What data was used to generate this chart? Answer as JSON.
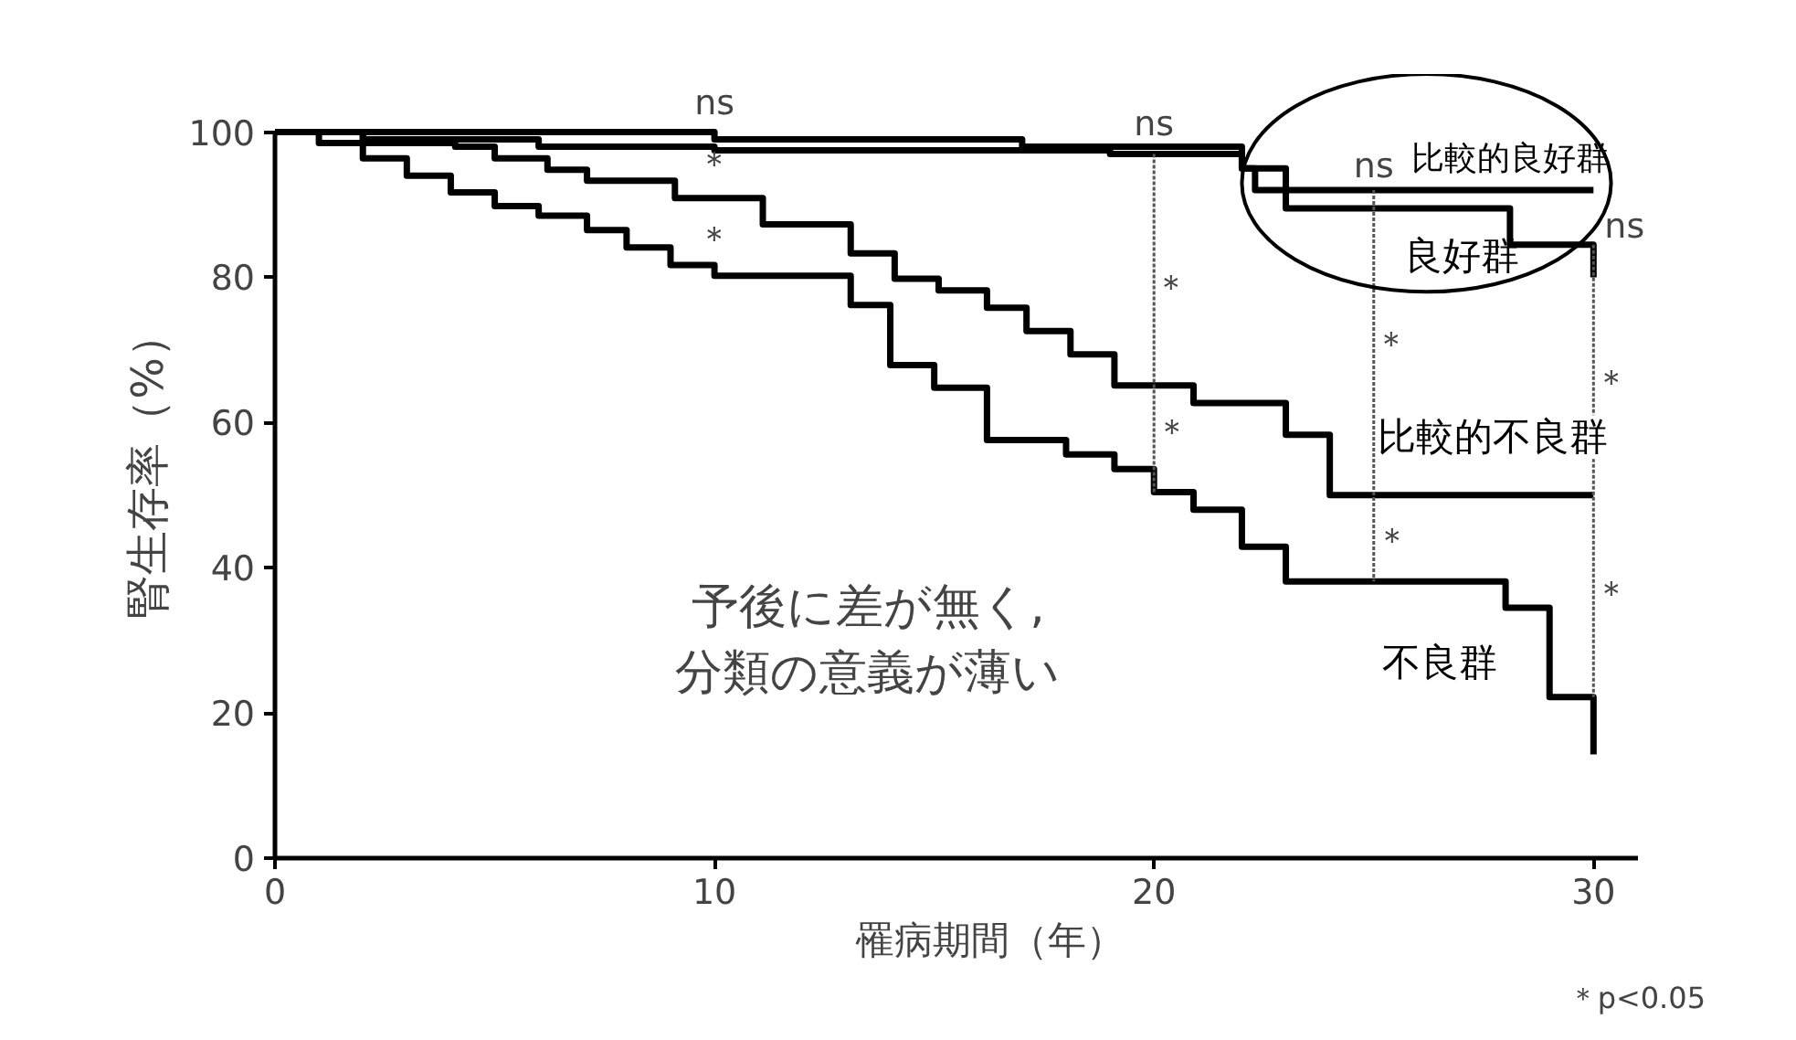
{
  "chart_data": {
    "type": "step",
    "xlabel": "罹病期間（年）",
    "ylabel": "腎生存率（%）",
    "xlim": [
      0,
      31
    ],
    "ylim": [
      0,
      100
    ],
    "xticks": [
      0,
      10,
      20,
      30
    ],
    "yticks": [
      0,
      20,
      40,
      60,
      80,
      100
    ],
    "grid": false,
    "legend": false,
    "marker": "none",
    "line_style": "solid",
    "series": [
      {
        "name": "比較的良好群",
        "color": "#000000",
        "x": [
          0,
          10,
          17,
          22,
          22.3,
          30
        ],
        "values": [
          100,
          99,
          98,
          95,
          92,
          92
        ]
      },
      {
        "name": "良好群",
        "color": "#000000",
        "x": [
          0,
          1,
          2,
          6,
          10,
          19,
          22,
          23,
          28.1,
          30
        ],
        "values": [
          100,
          100,
          99,
          98,
          97.5,
          97,
          95,
          89.5,
          84.5,
          80
        ]
      },
      {
        "name": "比較的不良群",
        "color": "#000000",
        "x": [
          0,
          1,
          4.1,
          5,
          6.2,
          7.1,
          9.1,
          11.1,
          13.1,
          14.1,
          15.1,
          16.2,
          17.1,
          18.1,
          19.1,
          20.9,
          23,
          24,
          30
        ],
        "values": [
          100,
          98.5,
          98,
          96.4,
          94.8,
          93.3,
          90.9,
          87.3,
          83.3,
          79.8,
          78.2,
          75.8,
          72.6,
          69.4,
          65.1,
          62.7,
          58.3,
          50,
          50
        ]
      },
      {
        "name": "不良群",
        "color": "#000000",
        "x": [
          0,
          2,
          3,
          4,
          5,
          6,
          7.1,
          8,
          9,
          10,
          13.1,
          14,
          15,
          16.2,
          18,
          19.1,
          20,
          20.9,
          22,
          23,
          28,
          29,
          30,
          30
        ],
        "values": [
          100,
          96.4,
          94,
          91.7,
          89.8,
          88.5,
          86.5,
          84.1,
          81.7,
          80.2,
          76.2,
          67.9,
          64.8,
          57.6,
          55.6,
          53.6,
          50.4,
          48,
          42.9,
          38.1,
          34.5,
          22.2,
          22.2,
          14.3
        ]
      }
    ],
    "annotations": [
      "ns",
      "＊",
      "＊",
      {
        "text": "ns",
        "x": 20,
        "y": 97
      },
      "＊",
      {
        "text": "＊",
        "x": 20,
        "y": 50.4
      },
      {
        "text": "ns",
        "x": 25,
        "y": 92
      },
      "＊",
      {
        "text": "＊",
        "x": 25,
        "y": 38.1
      },
      {
        "text": "ns",
        "x": 30,
        "y": 84.5
      },
      "＊",
      "＊",
      "予後に差が無く,\n分類の意義が薄い",
      "＊p<0.05"
    ]
  }
}
